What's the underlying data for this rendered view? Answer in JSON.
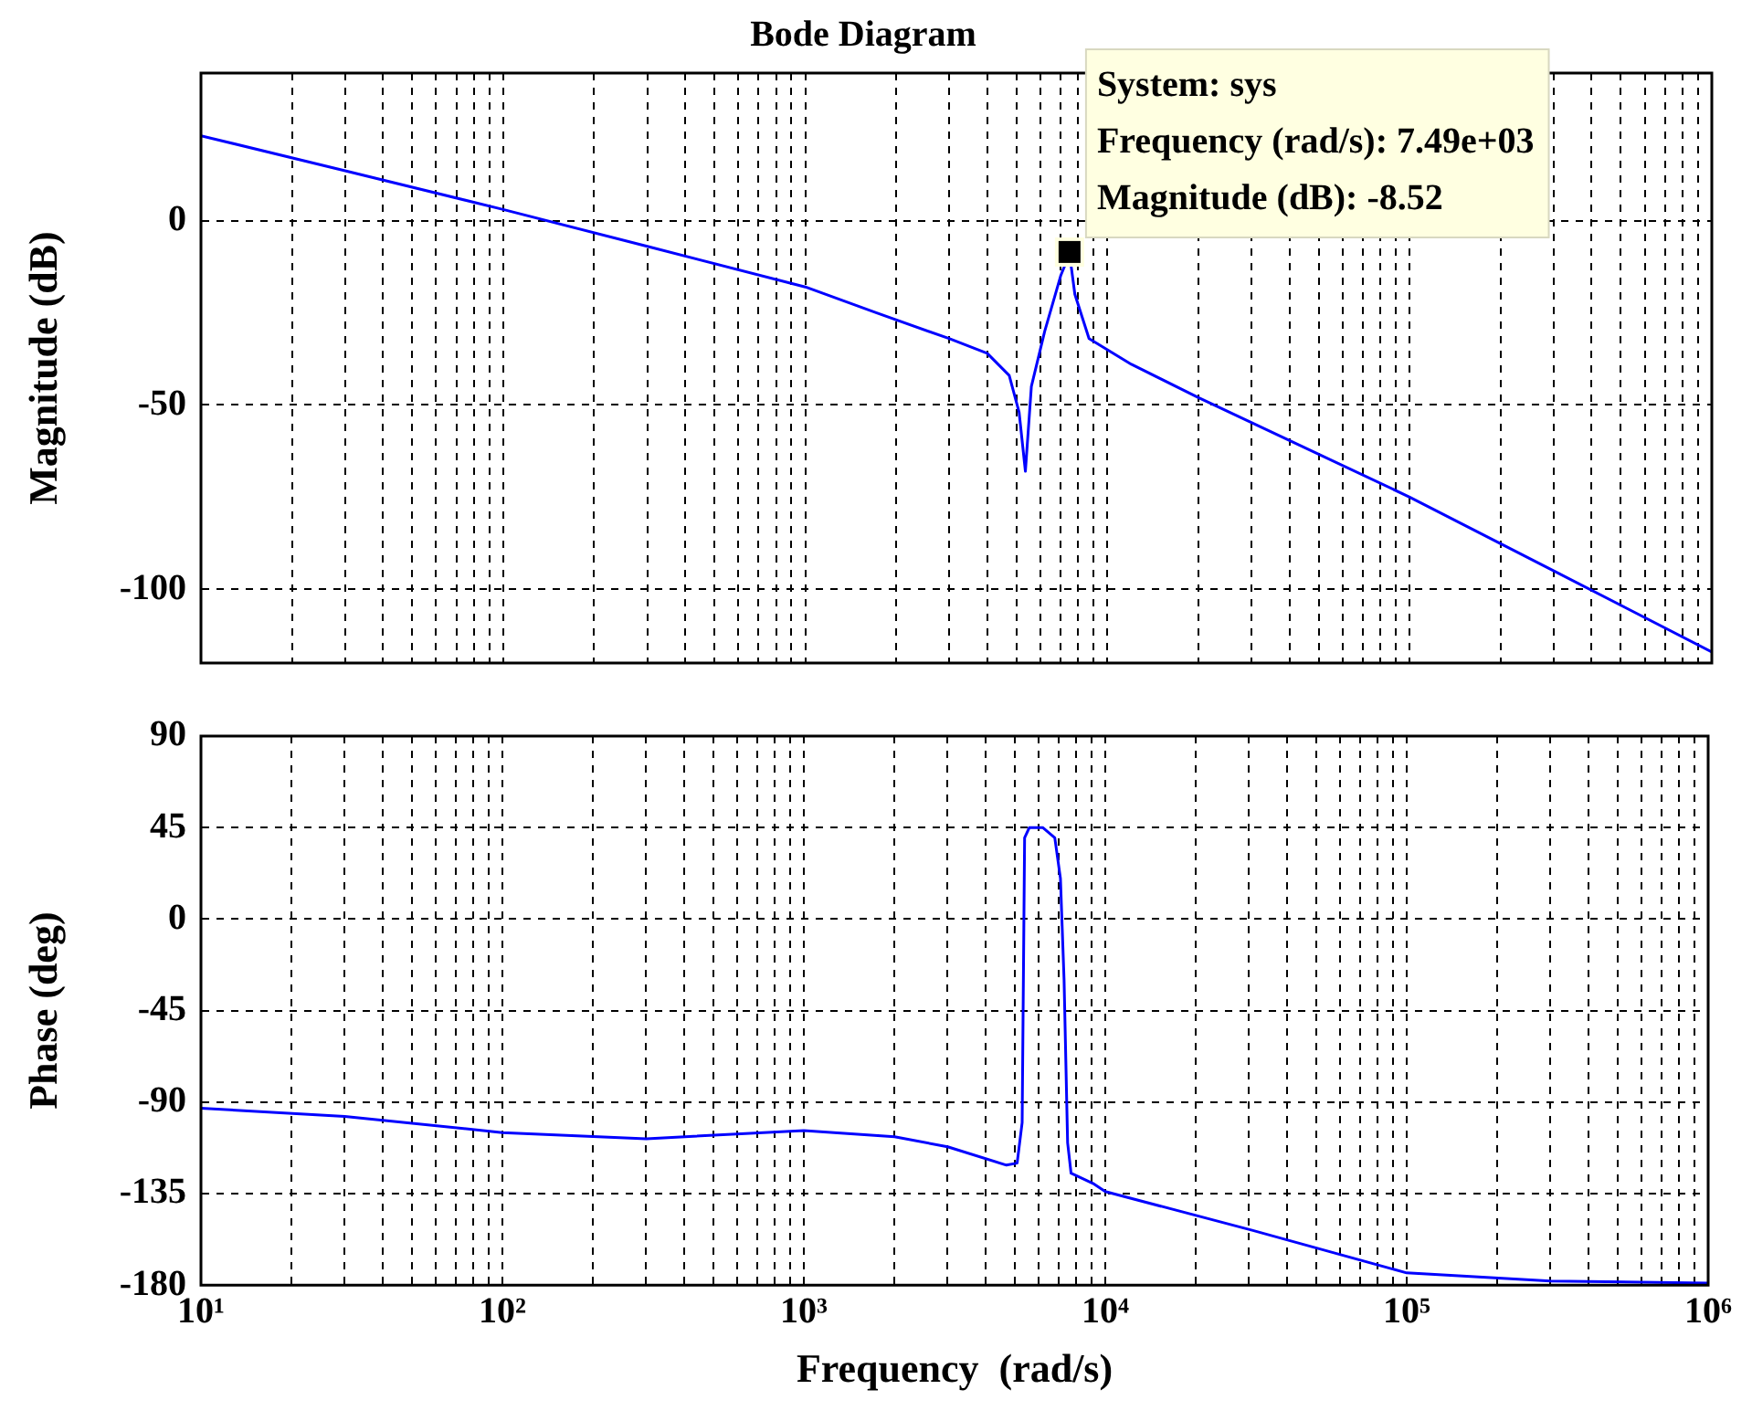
{
  "chart_data": [
    {
      "type": "line",
      "title": "Bode Diagram",
      "ylabel": "Magnitude (dB)",
      "x": [
        10,
        30,
        100,
        300,
        1000,
        1715,
        2990,
        4000,
        4730,
        5100,
        5350,
        5600,
        6200,
        7000,
        7490,
        7800,
        8690,
        12000,
        20000,
        100000,
        300000,
        1000000
      ],
      "series": [
        {
          "color": "#0000ff",
          "values": [
            23,
            13.5,
            3,
            -7,
            -18,
            -25,
            -32,
            -36,
            -42,
            -52,
            -68,
            -45,
            -30,
            -15,
            -9,
            -20,
            -32,
            -39,
            -48,
            -75,
            -95,
            -117
          ]
        }
      ],
      "xlim": [
        10,
        1000000
      ],
      "xticks": [
        {
          "value": 10,
          "label": null
        },
        {
          "value": 100,
          "label": null
        },
        {
          "value": 1000,
          "label": null
        },
        {
          "value": 10000,
          "label": null
        },
        {
          "value": 100000,
          "label": null
        },
        {
          "value": 1000000,
          "label": null
        }
      ],
      "ylim": [
        -120,
        40
      ],
      "yticks": [
        -100,
        -50,
        0
      ],
      "log": "x",
      "grid": true,
      "tick_labels": "y",
      "annotations": [
        {
          "text": "System: sys\nFrequency (rad/s): 7.49e+03\nMagnitude (dB): -8.52",
          "x": 7490,
          "y": -8.52
        }
      ]
    },
    {
      "type": "line",
      "xlabel": "Frequency  (rad/s)",
      "ylabel": "Phase (deg)",
      "x": [
        10,
        30,
        100,
        300,
        1000,
        2000,
        3000,
        4700,
        5100,
        5300,
        5400,
        5600,
        6200,
        6800,
        7100,
        7300,
        7500,
        7700,
        9100,
        10000,
        30700,
        100000,
        300000,
        1000000
      ],
      "series": [
        {
          "color": "#0000ff",
          "values": [
            -93,
            -97,
            -105,
            -108,
            -104,
            -107,
            -112,
            -121,
            -120,
            -100,
            40,
            45,
            45,
            40,
            20,
            -30,
            -110,
            -125,
            -130,
            -134,
            -153,
            -174,
            -178,
            -179
          ]
        }
      ],
      "xlim": [
        10,
        1000000
      ],
      "xticks": [
        {
          "value": 10,
          "label": "10¹"
        },
        {
          "value": 100,
          "label": "10²"
        },
        {
          "value": 1000,
          "label": "10³"
        },
        {
          "value": 10000,
          "label": "10⁴"
        },
        {
          "value": 100000,
          "label": "10⁵"
        },
        {
          "value": 1000000,
          "label": "10⁶"
        }
      ],
      "ylim": [
        -180,
        90
      ],
      "yticks": [
        -180,
        -135,
        -90,
        -45,
        0,
        45,
        90
      ],
      "log": "x",
      "grid": true
    }
  ]
}
